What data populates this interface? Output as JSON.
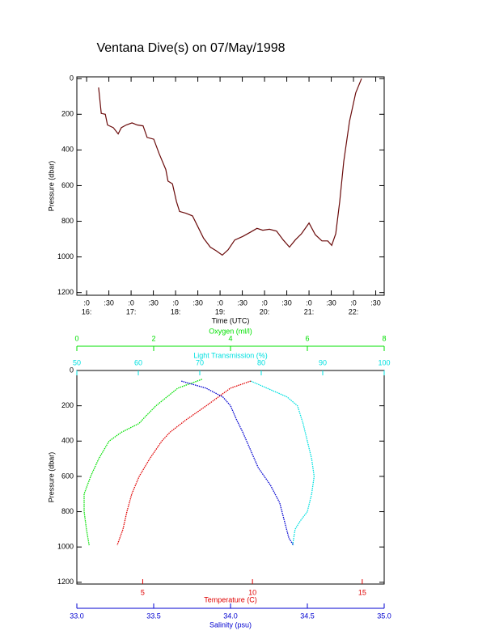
{
  "chart_data": [
    {
      "type": "line",
      "title": "Ventana Dive(s) on 07/May/1998",
      "xlabel": "Time (UTC)",
      "ylabel": "Pressure (dbar)",
      "color": "#6a0a0a",
      "x": [
        16.27,
        16.33,
        16.42,
        16.47,
        16.6,
        16.71,
        16.78,
        16.89,
        17.02,
        17.14,
        17.27,
        17.36,
        17.51,
        17.63,
        17.78,
        17.83,
        17.93,
        18.02,
        18.09,
        18.23,
        18.38,
        18.51,
        18.63,
        18.78,
        18.91,
        19.05,
        19.18,
        19.33,
        19.51,
        19.69,
        19.83,
        19.96,
        20.11,
        20.27,
        20.42,
        20.56,
        20.69,
        20.83,
        21.0,
        21.14,
        21.29,
        21.42,
        21.51,
        21.6,
        21.69,
        21.78,
        21.91,
        22.05,
        22.18
      ],
      "values": [
        50,
        195,
        200,
        260,
        275,
        310,
        275,
        260,
        248,
        260,
        265,
        330,
        340,
        420,
        510,
        575,
        590,
        690,
        745,
        755,
        770,
        835,
        895,
        945,
        965,
        990,
        960,
        905,
        885,
        860,
        840,
        850,
        845,
        855,
        905,
        945,
        905,
        870,
        810,
        875,
        910,
        910,
        935,
        870,
        690,
        465,
        240,
        80,
        0
      ],
      "xlim": [
        15.78,
        22.69
      ],
      "xticks": [
        {
          "value": 16,
          "label": ":0"
        },
        {
          "value": 16.5,
          "label": ":30"
        },
        {
          "value": 17,
          "label": ":0"
        },
        {
          "value": 17.5,
          "label": ":30"
        },
        {
          "value": 18,
          "label": ":0"
        },
        {
          "value": 18.5,
          "label": ":30"
        },
        {
          "value": 19,
          "label": ":0"
        },
        {
          "value": 19.5,
          "label": ":30"
        },
        {
          "value": 20,
          "label": ":0"
        },
        {
          "value": 20.5,
          "label": ":30"
        },
        {
          "value": 21,
          "label": ":0"
        },
        {
          "value": 21.5,
          "label": ":30"
        },
        {
          "value": 22,
          "label": ":0"
        },
        {
          "value": 22.5,
          "label": ":30"
        }
      ],
      "xtick_hours": [
        {
          "value": 16,
          "label": "16:"
        },
        {
          "value": 17,
          "label": "17:"
        },
        {
          "value": 18,
          "label": "18:"
        },
        {
          "value": 19,
          "label": "19:"
        },
        {
          "value": 20,
          "label": "20:"
        },
        {
          "value": 21,
          "label": "21:"
        },
        {
          "value": 22,
          "label": "22:"
        }
      ],
      "ylim": [
        -10,
        1215
      ],
      "yticks": [
        0,
        200,
        400,
        600,
        800,
        1000,
        1200
      ],
      "y_reversed": true
    },
    {
      "type": "profile",
      "ylabel": "Pressure (dbar)",
      "ylim": [
        0,
        1210
      ],
      "yticks": [
        0,
        200,
        400,
        600,
        800,
        1000,
        1200
      ],
      "y_reversed": true,
      "series": [
        {
          "name": "Oxygen (ml/l)",
          "color": "#00e000",
          "xlim": [
            0,
            8
          ],
          "xticks": [
            0,
            2,
            4,
            6,
            8
          ],
          "pressure": [
            50,
            100,
            200,
            260,
            300,
            350,
            400,
            500,
            600,
            700,
            800,
            900,
            990
          ],
          "values": [
            3.26,
            2.63,
            2.06,
            1.79,
            1.62,
            1.16,
            0.84,
            0.57,
            0.36,
            0.19,
            0.19,
            0.25,
            0.32
          ]
        },
        {
          "name": "Light Transmission (%)",
          "color": "#00e0e0",
          "xlim": [
            50,
            100
          ],
          "xticks": [
            50,
            60,
            70,
            80,
            90,
            100
          ],
          "pressure": [
            60,
            150,
            200,
            300,
            400,
            500,
            600,
            700,
            800,
            850,
            900,
            990
          ],
          "values": [
            78.3,
            84.2,
            85.9,
            86.8,
            87.5,
            88.2,
            88.6,
            88.2,
            87.5,
            86.4,
            85.5,
            85.1
          ]
        },
        {
          "name": "Temperature (C)",
          "color": "#e00000",
          "xlim": [
            2,
            16
          ],
          "xticks": [
            5,
            10,
            15
          ],
          "pressure": [
            60,
            100,
            200,
            280,
            350,
            400,
            500,
            600,
            700,
            800,
            900,
            990
          ],
          "values": [
            9.92,
            9.0,
            7.9,
            6.97,
            6.24,
            5.87,
            5.32,
            4.84,
            4.5,
            4.28,
            4.1,
            3.84
          ]
        },
        {
          "name": "Salinity (psu)",
          "color": "#0000d0",
          "xlim": [
            33,
            35
          ],
          "xticks": [
            {
              "value": 33,
              "label": "33.0"
            },
            33.5,
            {
              "value": 34,
              "label": "34.0"
            },
            34.5,
            {
              "value": 35,
              "label": "35.0"
            }
          ],
          "pressure": [
            60,
            100,
            150,
            200,
            280,
            350,
            450,
            550,
            650,
            750,
            850,
            950,
            990
          ],
          "values": [
            33.68,
            33.84,
            33.95,
            34.0,
            34.04,
            34.08,
            34.13,
            34.18,
            34.26,
            34.32,
            34.35,
            34.38,
            34.41
          ]
        }
      ]
    }
  ]
}
